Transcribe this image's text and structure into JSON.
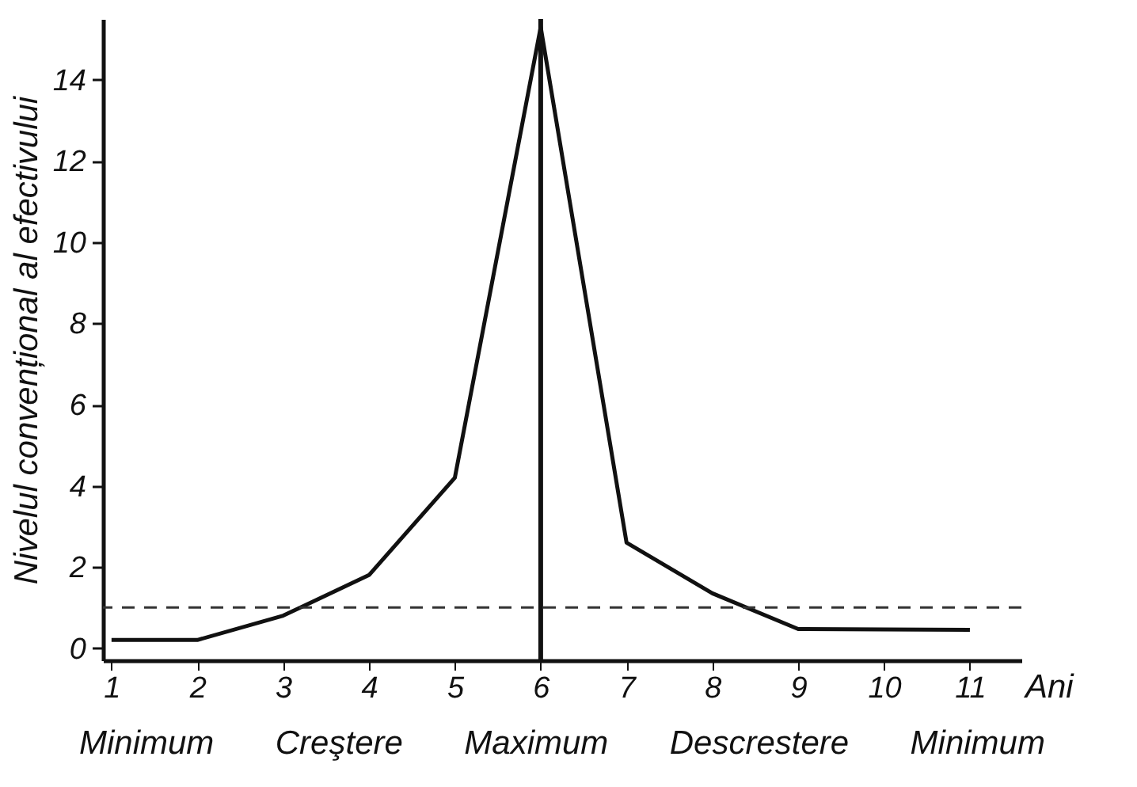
{
  "chart_data": {
    "type": "line",
    "xlabel": "Ani",
    "ylabel": "Nivelul convențional al efectivului",
    "x": [
      1,
      2,
      3,
      4,
      5,
      6,
      7,
      8,
      9,
      10,
      11
    ],
    "series": [
      {
        "color": "#111111",
        "values": [
          0.2,
          0.2,
          0.8,
          1.8,
          4.2,
          15.3,
          2.6,
          1.35,
          0.47,
          0.46,
          0.45
        ]
      }
    ],
    "xlim": [
      0.9,
      11.6
    ],
    "xticks": [
      1,
      2,
      3,
      4,
      5,
      6,
      7,
      8,
      9,
      10,
      11
    ],
    "ylim": [
      -0.3,
      15.5
    ],
    "yticks": [
      0,
      2,
      4,
      6,
      8,
      10,
      12,
      14
    ],
    "ref_lines": [
      {
        "axis": "y",
        "value": 1,
        "line_style": "dashed",
        "color": "#333333"
      },
      {
        "axis": "x",
        "value": 6,
        "line_style": "solid",
        "color": "#111111"
      }
    ],
    "annotations": [
      "Minimum",
      "Creştere",
      "Maximum",
      "Descrestere",
      "Minimum"
    ],
    "grid": false,
    "marker": "none",
    "line_style": "solid"
  }
}
